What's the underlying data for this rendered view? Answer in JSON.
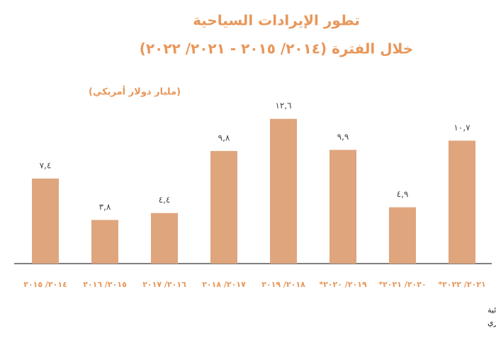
{
  "chart_data": {
    "type": "bar",
    "title": "تطور الإيرادات السياحية",
    "subtitle": "خلال الفترة (٢٠١٤/ ٢٠١٥ - ٢٠٢١/ ٢٠٢٢)",
    "y_label": "(مليار دولار أمريكي)",
    "categories": [
      "٢٠١٤/ ٢٠١٥",
      "٢٠١٥/ ٢٠١٦",
      "٢٠١٦/ ٢٠١٧",
      "٢٠١٧/ ٢٠١٨",
      "٢٠١٨/ ٢٠١٩",
      "٢٠١٩/ ٢٠٢٠*",
      "٢٠٢٠/ ٢٠٢١*",
      "٢٠٢١/ ٢٠٢٢*"
    ],
    "values": [
      7.4,
      3.8,
      4.4,
      9.8,
      12.6,
      9.9,
      4.9,
      10.7
    ],
    "value_labels": [
      "٧,٤",
      "٣,٨",
      "٤,٤",
      "٩,٨",
      "١٢,٦",
      "٩,٩",
      "٤,٩",
      "١٠,٧"
    ],
    "color": "#dfa57d",
    "ylim": [
      0,
      14
    ],
    "notes": [
      "* أرقام مبدئية",
      "المصدر: البنك المركزي المصري"
    ]
  }
}
